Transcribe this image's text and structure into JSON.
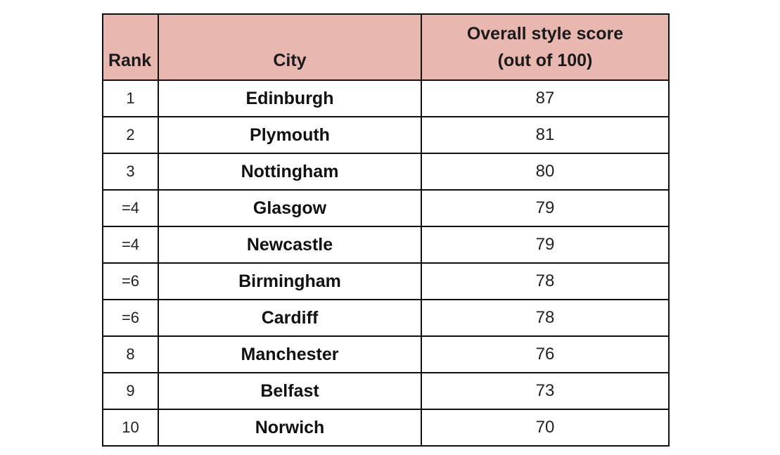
{
  "chart_data": {
    "type": "table",
    "columns": [
      "Rank",
      "City",
      "Overall style score",
      "(out of 100)"
    ],
    "rows": [
      {
        "rank": "1",
        "city": "Edinburgh",
        "score": "87"
      },
      {
        "rank": "2",
        "city": "Plymouth",
        "score": "81"
      },
      {
        "rank": "3",
        "city": "Nottingham",
        "score": "80"
      },
      {
        "rank": "=4",
        "city": "Glasgow",
        "score": "79"
      },
      {
        "rank": "=4",
        "city": "Newcastle",
        "score": "79"
      },
      {
        "rank": "=6",
        "city": "Birmingham",
        "score": "78"
      },
      {
        "rank": "=6",
        "city": "Cardiff",
        "score": "78"
      },
      {
        "rank": "8",
        "city": "Manchester",
        "score": "76"
      },
      {
        "rank": "9",
        "city": "Belfast",
        "score": "73"
      },
      {
        "rank": "10",
        "city": "Norwich",
        "score": "70"
      }
    ]
  },
  "colors": {
    "header_bg": "#e8b7b0",
    "border": "#111111",
    "cell_bg": "#ffffff"
  }
}
